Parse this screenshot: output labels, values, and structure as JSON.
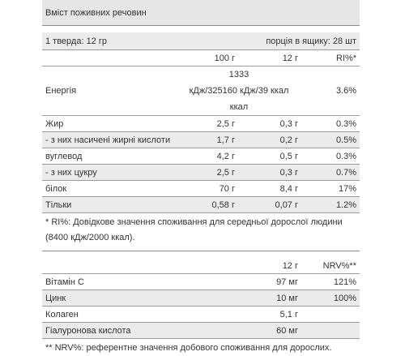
{
  "title": "Вміст поживних речовин",
  "serving": {
    "left": "1 тверда: 12 гр",
    "right": "порція в ящику: 28 шт"
  },
  "nutrition": {
    "columns": [
      "",
      "100 г",
      "12 г",
      "RI%*"
    ],
    "energy": {
      "name": "Енергія",
      "value_lines": [
        "1333",
        "кДж/325160 кДж/39 ккал",
        "ккал"
      ],
      "ri": "3.6%"
    },
    "rows": [
      {
        "name": "Жир",
        "per100": "2,5 г",
        "per12": "0,3 г",
        "ri": "0.3%",
        "shaded": false
      },
      {
        "name": "- з них насичені жирні кислоти",
        "per100": "1,7 г",
        "per12": "0,2 г",
        "ri": "0.5%",
        "shaded": true
      },
      {
        "name": "вуглевод",
        "per100": "4,2 г",
        "per12": "0,5 г",
        "ri": "0.3%",
        "shaded": false
      },
      {
        "name": "- з них цукру",
        "per100": "2,5 г",
        "per12": "0,3 г",
        "ri": "0.7%",
        "shaded": true
      },
      {
        "name": "білок",
        "per100": "70 г",
        "per12": "8,4 г",
        "ri": "17%",
        "shaded": false
      },
      {
        "name": "Тільки",
        "per100": "0,58 г",
        "per12": "0,07 г",
        "ri": "1.2%",
        "shaded": true
      }
    ],
    "footnote": "* RI%: Довідкове значення споживання для середньої дорослої людини (8400 кДж/2000 ккал)."
  },
  "vitamins": {
    "columns": [
      "",
      "12 г",
      "NRV%**"
    ],
    "rows": [
      {
        "name": "Вітамін С",
        "amount": "97 мг",
        "nrv": "121%",
        "shaded": false
      },
      {
        "name": "Цинк",
        "amount": "10 мг",
        "nrv": "100%",
        "shaded": true
      },
      {
        "name": "Колаген",
        "amount": "5,1 г",
        "nrv": "",
        "shaded": false
      },
      {
        "name": "Гіалуронова кислота",
        "amount": "60 мг",
        "nrv": "",
        "shaded": true
      }
    ],
    "footnote": "** NRV%: референтне значення добового споживання для дорослих."
  }
}
